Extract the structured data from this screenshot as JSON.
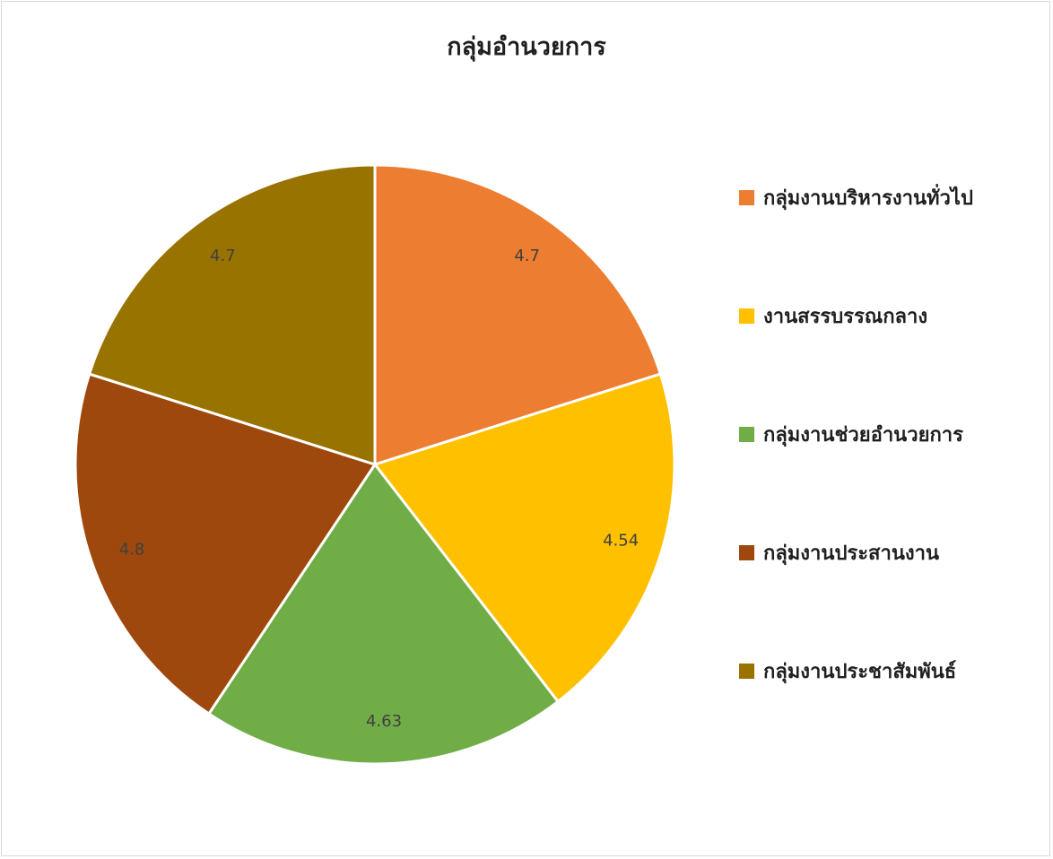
{
  "chart_data": {
    "type": "pie",
    "title": "กลุ่มอำนวยการ",
    "categories": [
      "กลุ่มงานบริหารงานทั่วไป",
      "งานสรรบรรณกลาง",
      "กลุ่มงานช่วยอำนวยการ",
      "กลุ่มงานประสานงาน",
      "กลุ่มงานประชาสัมพันธ์"
    ],
    "values": [
      4.7,
      4.54,
      4.63,
      4.8,
      4.7
    ],
    "data_labels": [
      "4.7",
      "4.54",
      "4.63",
      "4.8",
      "4.7"
    ],
    "colors": [
      "#ed7d31",
      "#ffc000",
      "#70ad47",
      "#9e480e",
      "#997300"
    ],
    "legend_position": "right",
    "start_angle": "12 o'clock, clockwise"
  }
}
